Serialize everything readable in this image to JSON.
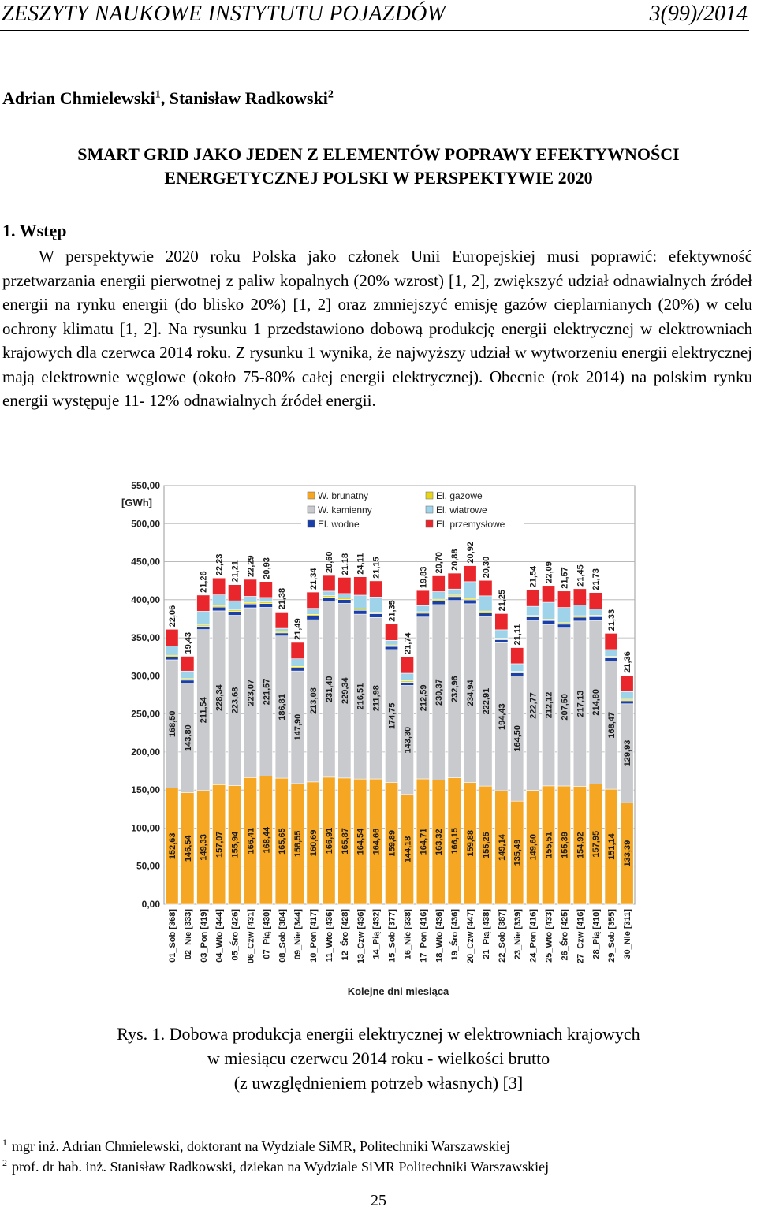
{
  "header": {
    "journal": "ZESZYTY NAUKOWE INSTYTUTU POJAZDÓW",
    "issue": "3(99)/2014"
  },
  "authors": {
    "a1": "Adrian Chmielewski",
    "a1_sup": "1",
    "sep": ", ",
    "a2": "Stanisław Radkowski",
    "a2_sup": "2"
  },
  "title": {
    "line1": "SMART GRID JAKO JEDEN Z ELEMENTÓW POPRAWY EFEKTYWNOŚCI",
    "line2": "ENERGETYCZNEJ POLSKI W PERSPEKTYWIE 2020"
  },
  "section": {
    "heading": "1. Wstęp"
  },
  "body": {
    "p1": "W perspektywie 2020 roku Polska jako członek Unii Europejskiej musi poprawić: efektywność przetwarzania energii pierwotnej z paliw kopalnych (20% wzrost) [1, 2], zwiększyć udział odnawialnych źródeł energii na rynku energii (do blisko 20%) [1, 2] oraz zmniejszyć emisję gazów cieplarnianych (20%) w celu ochrony klimatu [1, 2]. Na rysunku 1 przedstawiono dobową produkcję energii elektrycznej w elektrowniach krajowych dla czerwca 2014 roku. Z rysunku 1 wynika, że najwyższy udział w wytworzeniu energii elektrycznej mają elektrownie węglowe (około 75-80% całej energii elektrycznej). Obecnie (rok 2014) na polskim rynku energii występuje 11- 12% odnawialnych źródeł energii."
  },
  "chart_data": {
    "type": "bar",
    "stacked": true,
    "ylabel": "[GWh]",
    "xlabel": "Kolejne dni miesiąca",
    "ylim": [
      0,
      550
    ],
    "yticks": [
      "0,00",
      "50,00",
      "100,00",
      "150,00",
      "200,00",
      "250,00",
      "300,00",
      "350,00",
      "400,00",
      "450,00",
      "500,00",
      "550,00"
    ],
    "grid": true,
    "legend_position": "top",
    "categories": [
      "01_Sob [368]",
      "02_Nie [333]",
      "03_Pon [419]",
      "04_Wto [444]",
      "05_Śro [426]",
      "06_Czw [431]",
      "07_Pią [430]",
      "08_Sob [384]",
      "09_Nie [344]",
      "10_Pon [417]",
      "11_Wto [436]",
      "12_Śro [428]",
      "13_Czw [436]",
      "14_Pią [432]",
      "15_Sob [377]",
      "16_Nie [338]",
      "17_Pon [416]",
      "18_Wto [436]",
      "19_Śro [436]",
      "20_Czw [447]",
      "21_Pią [438]",
      "22_Sob [387]",
      "23_Nie [339]",
      "24_Pon [416]",
      "25_Wto [433]",
      "26_Śro [425]",
      "27_Czw [416]",
      "28_Pią [410]",
      "29_Sob [355]",
      "30_Nie [311]"
    ],
    "series": [
      {
        "name": "W. brunatny",
        "color": "#f5a623",
        "values": [
          152.63,
          146.54,
          149.33,
          157.07,
          155.94,
          166.41,
          168.44,
          165.65,
          158.55,
          160.69,
          166.91,
          165.87,
          164.54,
          164.66,
          159.89,
          144.18,
          164.71,
          163.32,
          166.15,
          159.88,
          155.25,
          149.14,
          135.49,
          149.6,
          155.51,
          155.39,
          154.92,
          157.95,
          151.14,
          133.39
        ]
      },
      {
        "name": "W. kamienny",
        "color": "#c8cacd",
        "values": [
          168.5,
          143.8,
          211.54,
          228.34,
          223.68,
          223.07,
          221.57,
          186.81,
          147.9,
          213.08,
          231.4,
          229.34,
          216.51,
          211.98,
          174.75,
          143.3,
          212.59,
          230.37,
          232.96,
          234.94,
          222.91,
          194.43,
          164.5,
          222.77,
          212.12,
          207.5,
          217.13,
          214.8,
          168.47,
          129.93
        ]
      },
      {
        "name": "El. wodne",
        "color": "#1b3fa8",
        "values": [
          4,
          4,
          4,
          5,
          5,
          5,
          5,
          4,
          4,
          5,
          5,
          5,
          5,
          5,
          4,
          4,
          5,
          5,
          5,
          5,
          5,
          4,
          4,
          5,
          5,
          5,
          5,
          5,
          4,
          4
        ]
      },
      {
        "name": "El. gazowe",
        "color": "#e8d51a",
        "values": [
          2,
          2,
          2,
          2,
          2,
          2,
          2,
          2,
          2,
          2,
          2,
          2,
          2,
          2,
          2,
          2,
          2,
          2,
          2,
          2,
          2,
          2,
          2,
          2,
          2,
          2,
          2,
          2,
          2,
          2
        ]
      },
      {
        "name": "El. wiatrowe",
        "color": "#9fd3ea",
        "values": [
          12,
          10,
          18,
          14,
          12,
          8,
          6,
          4,
          10,
          8,
          6,
          6,
          18,
          20,
          6,
          10,
          8,
          10,
          8,
          22,
          20,
          11,
          10,
          12,
          22,
          20,
          14,
          8,
          9,
          10
        ]
      },
      {
        "name": "El. przemysłowe",
        "color": "#e8262b",
        "values": [
          22.06,
          19.43,
          21.26,
          22.23,
          21.21,
          22.29,
          20.93,
          21.38,
          21.49,
          21.34,
          20.6,
          21.18,
          24.11,
          21.15,
          21.35,
          21.74,
          19.83,
          20.7,
          20.88,
          20.92,
          20.3,
          21.25,
          21.11,
          21.54,
          22.09,
          21.57,
          21.45,
          21.73,
          21.33,
          21.36
        ]
      }
    ],
    "labels_brunatny": [
      "152,63",
      "146,54",
      "149,33",
      "157,07",
      "155,94",
      "166,41",
      "168,44",
      "165,65",
      "158,55",
      "160,69",
      "166,91",
      "165,87",
      "164,54",
      "164,66",
      "159,89",
      "144,18",
      "164,71",
      "163,32",
      "166,15",
      "159,88",
      "155,25",
      "149,14",
      "135,49",
      "149,60",
      "155,51",
      "155,39",
      "154,92",
      "157,95",
      "151,14",
      "133,39"
    ],
    "labels_kamienny": [
      "168,50",
      "143,80",
      "211,54",
      "228,34",
      "223,68",
      "223,07",
      "221,57",
      "186,81",
      "147,90",
      "213,08",
      "231,40",
      "229,34",
      "216,51",
      "211,98",
      "174,75",
      "143,30",
      "212,59",
      "230,37",
      "232,96",
      "234,94",
      "222,91",
      "194,43",
      "164,50",
      "222,77",
      "212,12",
      "207,50",
      "217,13",
      "214,80",
      "168,47",
      "129,93"
    ],
    "labels_przemyslowe": [
      "22,06",
      "19,43",
      "21,26",
      "22,23",
      "21,21",
      "22,29",
      "20,93",
      "21,38",
      "21,49",
      "21,34",
      "20,60",
      "21,18",
      "24,11",
      "21,15",
      "21,35",
      "21,74",
      "19,83",
      "20,70",
      "20,88",
      "20,92",
      "20,30",
      "21,25",
      "21,11",
      "21,54",
      "22,09",
      "21,57",
      "21,45",
      "21,73",
      "21,33",
      "21,36"
    ]
  },
  "caption": {
    "line1": "Rys. 1. Dobowa produkcja energii elektrycznej w elektrowniach krajowych",
    "line2": "w miesiącu czerwcu 2014 roku - wielkości brutto",
    "line3": "(z uwzględnieniem potrzeb własnych) [3]"
  },
  "footnotes": {
    "f1_sup": "1",
    "f1": "mgr inż. Adrian Chmielewski, doktorant na Wydziale SiMR, Politechniki Warszawskiej",
    "f2_sup": "2",
    "f2": "prof. dr hab. inż. Stanisław Radkowski, dziekan na Wydziale SiMR Politechniki Warszawskiej"
  },
  "page_number": "25"
}
